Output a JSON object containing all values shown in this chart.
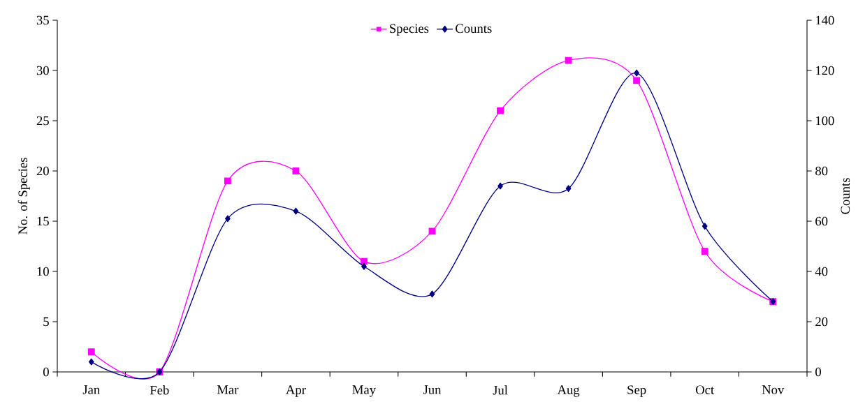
{
  "chart_data": {
    "type": "line",
    "categories": [
      "Jan",
      "Feb",
      "Mar",
      "Apr",
      "May",
      "Jun",
      "Jul",
      "Aug",
      "Sep",
      "Oct",
      "Nov"
    ],
    "ylabel": "No. of Species",
    "y2label": "Counts",
    "ylim": [
      0,
      35
    ],
    "yticks": [
      0,
      5,
      10,
      15,
      20,
      25,
      30,
      35
    ],
    "y2lim": [
      0,
      140
    ],
    "y2ticks": [
      0,
      20,
      40,
      60,
      80,
      100,
      120,
      140
    ],
    "legend": "top",
    "grid": false,
    "series": [
      {
        "name": "Species",
        "color": "#ff00ff",
        "marker": "square",
        "values": [
          2,
          0,
          19,
          20,
          11,
          14,
          26,
          31,
          29,
          12,
          7
        ]
      },
      {
        "name": "Counts",
        "color": "#000080",
        "marker": "diamond",
        "axis": "y2",
        "values": [
          4,
          0,
          61,
          64,
          42,
          31,
          74,
          73,
          119,
          58,
          28
        ]
      }
    ]
  }
}
